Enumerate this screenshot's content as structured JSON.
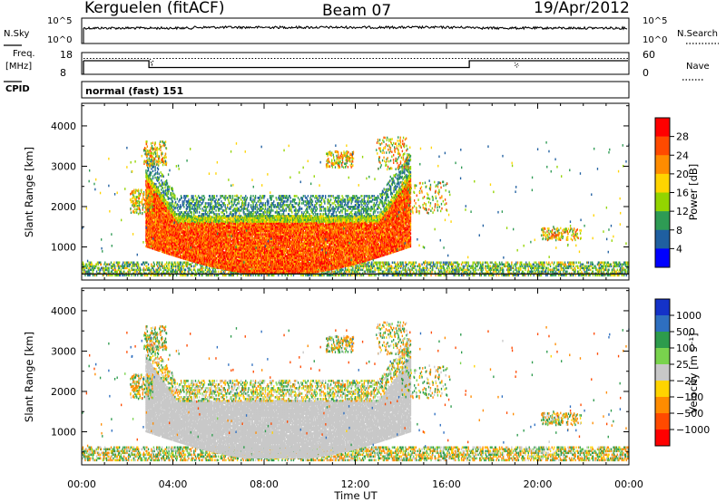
{
  "header": {
    "station": "Kerguelen (fitACF)",
    "beam": "Beam 07",
    "date": "19/Apr/2012"
  },
  "noise_panel": {
    "left_label": "N.Sky",
    "right_label": "N.Search",
    "left_ticks": [
      "10^5",
      "10^0"
    ],
    "right_ticks": [
      "10^5",
      "10^0"
    ]
  },
  "freq_panel": {
    "left_label_line1": "Freq.",
    "left_label_line2": "[MHz]",
    "left_ticks": [
      "18",
      "8"
    ],
    "right_ticks": [
      "60",
      "0"
    ],
    "right_label": "Nave"
  },
  "cpid_panel": {
    "label": "CPID",
    "mode": "normal (fast) 151"
  },
  "time_axis": {
    "label": "Time UT",
    "ticks": [
      "00:00",
      "04:00",
      "08:00",
      "12:00",
      "16:00",
      "20:00",
      "00:00"
    ]
  },
  "power_colorbar": {
    "label": "Power [dB]",
    "ticks": [
      "28",
      "24",
      "20",
      "16",
      "12",
      "8",
      "4"
    ],
    "colors": [
      "#ff0000",
      "#ff4a00",
      "#ff8c00",
      "#ffd400",
      "#93d400",
      "#2e9b54",
      "#1f5fa0",
      "#0000ff"
    ]
  },
  "velocity_colorbar": {
    "label": "Velocity [m s⁻¹]",
    "ticks": [
      "1000",
      "500",
      "100",
      "25",
      "−25",
      "−100",
      "−500",
      "−1000"
    ],
    "colors": [
      "#1432c8",
      "#2e6fc0",
      "#2d9b4c",
      "#79d34d",
      "#c8c8c8",
      "#ffd400",
      "#ff8c00",
      "#ff4a00",
      "#ff0000"
    ]
  },
  "chart_data": [
    {
      "type": "heatmap",
      "title": "",
      "xlabel": "Time UT",
      "ylabel": "Slant Range [km]",
      "xlim_hours": [
        0,
        24
      ],
      "ylim": [
        180,
        4560
      ],
      "y_ticks": [
        1000,
        2000,
        3000,
        4000
      ],
      "colorbar": "Power [dB]",
      "zlim": [
        0,
        32
      ]
    },
    {
      "type": "heatmap",
      "title": "",
      "xlabel": "Time UT",
      "ylabel": "Slant Range [km]",
      "xlim_hours": [
        0,
        24
      ],
      "ylim": [
        180,
        4560
      ],
      "y_ticks": [
        1000,
        2000,
        3000,
        4000
      ],
      "colorbar": "Velocity [m s⁻¹]",
      "zlim": [
        -1000,
        1000
      ]
    }
  ]
}
